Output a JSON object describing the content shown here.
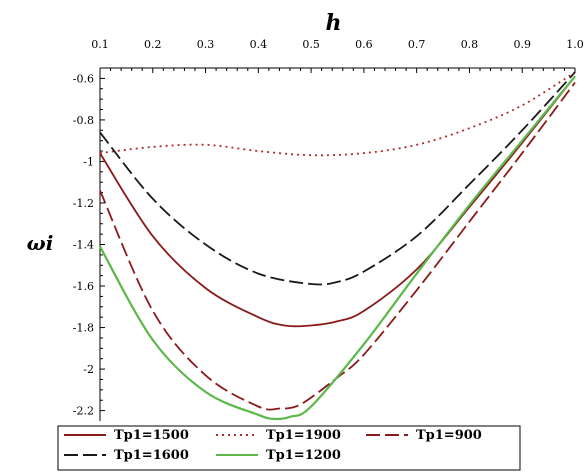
{
  "chart_data": {
    "type": "line",
    "xlabel": "h",
    "ylabel": "ωi",
    "xlim": [
      0.1,
      1.0
    ],
    "ylim": [
      -2.25,
      -0.55
    ],
    "x_ticks": [
      "0.1",
      "0.2",
      "0.3",
      "0.4",
      "0.5",
      "0.6",
      "0.7",
      "0.8",
      "0.9",
      "1.0"
    ],
    "y_ticks": [
      "-0.6",
      "-0.8",
      "-1",
      "-1.2",
      "-1.4",
      "-1.6",
      "-1.8",
      "-2",
      "-2.2"
    ],
    "x_axis_position": "top",
    "grid": false,
    "legend_position": "bottom",
    "series": [
      {
        "name": "Tp1=1500",
        "color": "#8b1a1a",
        "dash": "solid",
        "x": [
          0.1,
          0.2,
          0.3,
          0.4,
          0.45,
          0.5,
          0.55,
          0.6,
          0.7,
          0.8,
          0.9,
          1.0
        ],
        "y": [
          -0.96,
          -1.36,
          -1.61,
          -1.75,
          -1.79,
          -1.79,
          -1.77,
          -1.72,
          -1.52,
          -1.22,
          -0.91,
          -0.59
        ]
      },
      {
        "name": "Tp1=1900",
        "color": "#b22a2a",
        "dash": "dotted",
        "x": [
          0.1,
          0.2,
          0.3,
          0.4,
          0.5,
          0.6,
          0.7,
          0.8,
          0.9,
          1.0
        ],
        "y": [
          -0.96,
          -0.93,
          -0.92,
          -0.95,
          -0.97,
          -0.96,
          -0.92,
          -0.84,
          -0.73,
          -0.57
        ]
      },
      {
        "name": "Tp1=900",
        "color": "#8b1a1a",
        "dash": "longdash",
        "x": [
          0.1,
          0.2,
          0.3,
          0.4,
          0.44,
          0.48,
          0.55,
          0.6,
          0.7,
          0.8,
          0.9,
          1.0
        ],
        "y": [
          -1.14,
          -1.72,
          -2.03,
          -2.18,
          -2.19,
          -2.17,
          -2.04,
          -1.93,
          -1.62,
          -1.29,
          -0.96,
          -0.62
        ]
      },
      {
        "name": "Tp1=1600",
        "color": "#1a1a1a",
        "dash": "longdash",
        "x": [
          0.1,
          0.2,
          0.3,
          0.4,
          0.5,
          0.55,
          0.6,
          0.7,
          0.8,
          0.9,
          1.0
        ],
        "y": [
          -0.86,
          -1.18,
          -1.4,
          -1.54,
          -1.59,
          -1.58,
          -1.53,
          -1.36,
          -1.11,
          -0.85,
          -0.57
        ]
      },
      {
        "name": "Tp1=1200",
        "color": "#5cb84a",
        "dash": "solid",
        "x": [
          0.1,
          0.2,
          0.3,
          0.4,
          0.43,
          0.46,
          0.5,
          0.6,
          0.7,
          0.8,
          0.9,
          1.0
        ],
        "y": [
          -1.41,
          -1.86,
          -2.11,
          -2.22,
          -2.24,
          -2.23,
          -2.18,
          -1.88,
          -1.54,
          -1.21,
          -0.9,
          -0.59
        ]
      }
    ]
  }
}
